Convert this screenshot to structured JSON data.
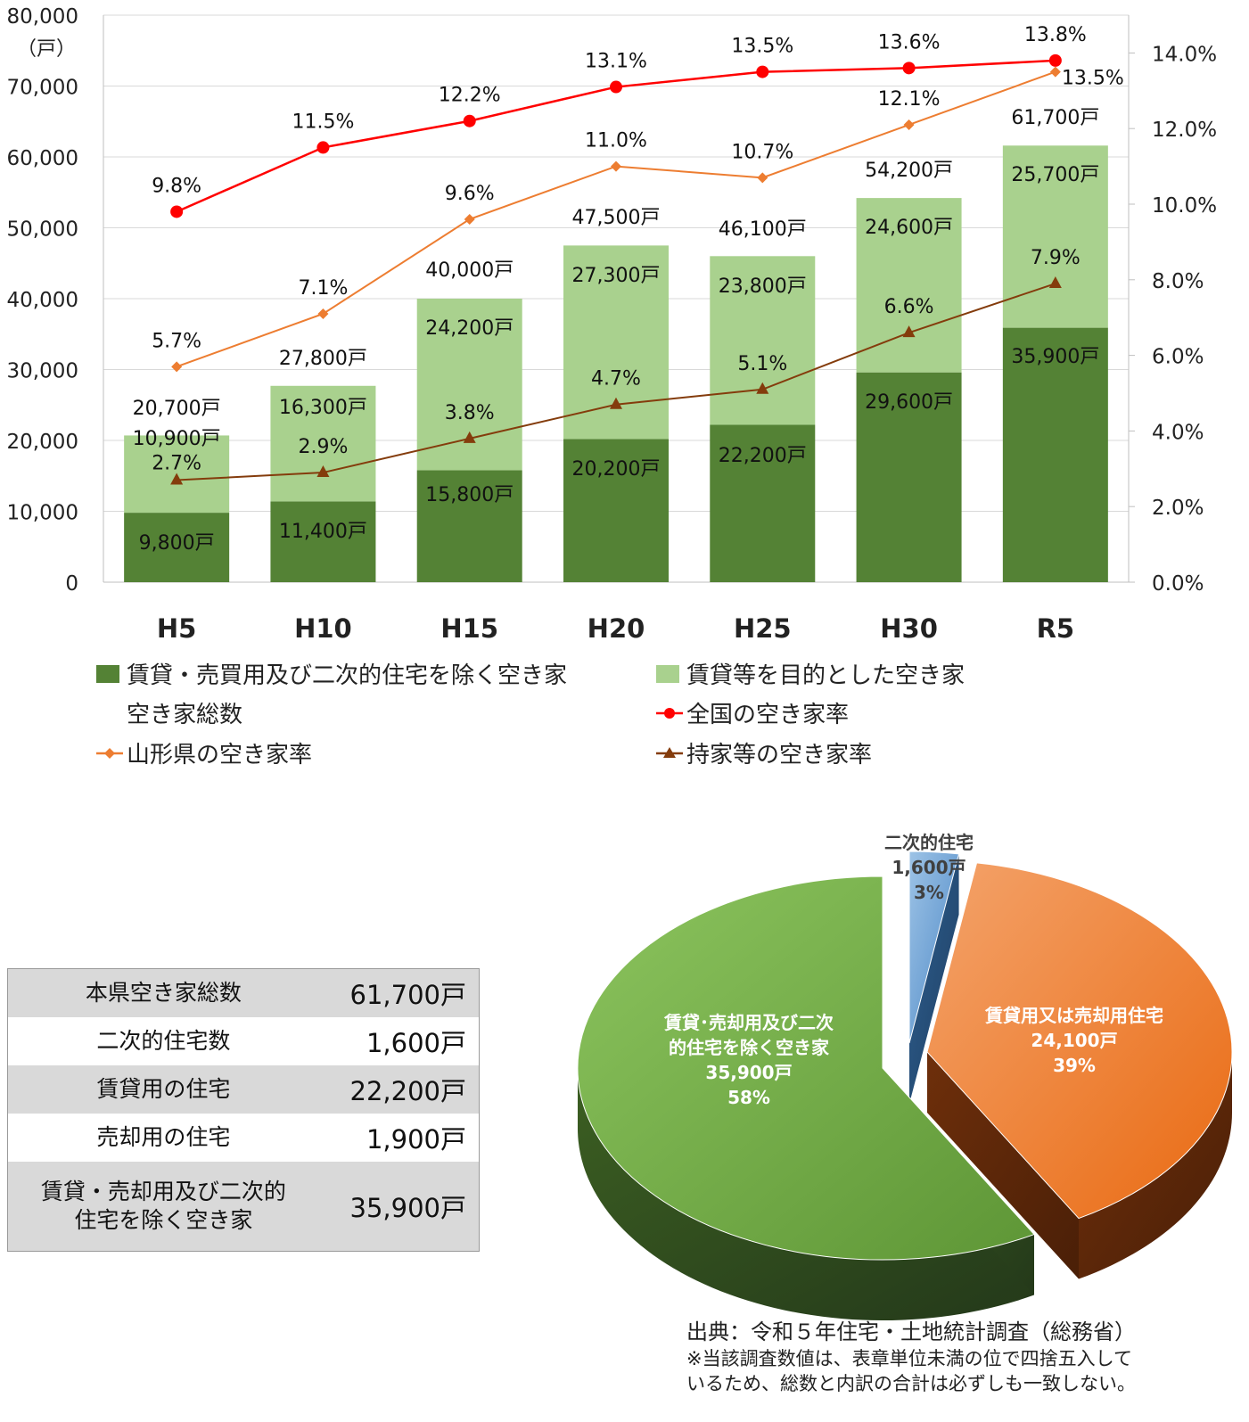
{
  "chart_data": [
    {
      "type": "bar",
      "stacked": true,
      "categories": [
        "H5",
        "H10",
        "H15",
        "H20",
        "H25",
        "H30",
        "R5"
      ],
      "y_left_unit": "（戸）",
      "ylim_left": [
        0,
        80000
      ],
      "yticks_left": [
        "0",
        "10,000",
        "20,000",
        "30,000",
        "40,000",
        "50,000",
        "60,000",
        "70,000",
        "80,000"
      ],
      "ylim_right": [
        0,
        15
      ],
      "yticks_right_values": [
        0,
        2,
        4,
        6,
        8,
        10,
        12,
        14
      ],
      "yticks_right": [
        "0.0%",
        "2.0%",
        "4.0%",
        "6.0%",
        "8.0%",
        "10.0%",
        "12.0%",
        "14.0%"
      ],
      "grid": "horizontal",
      "legend_position": "bottom",
      "bar_series": [
        {
          "name": "賃貸・売買用及び二次的住宅を除く空き家",
          "color": "#548235",
          "values": [
            9800,
            11400,
            15800,
            20200,
            22200,
            29600,
            35900
          ],
          "labels": [
            "9,800戸",
            "11,400戸",
            "15,800戸",
            "20,200戸",
            "22,200戸",
            "29,600戸",
            "35,900戸"
          ]
        },
        {
          "name": "賃貸等を目的とした空き家",
          "color": "#a9d18e",
          "values": [
            10900,
            16300,
            24200,
            27300,
            23800,
            24600,
            25700
          ],
          "labels": [
            "10,900戸",
            "16,300戸",
            "24,200戸",
            "27,300戸",
            "23,800戸",
            "24,600戸",
            "25,700戸"
          ]
        }
      ],
      "total_series": {
        "name": "空き家総数",
        "values": [
          20700,
          27800,
          40000,
          47500,
          46100,
          54200,
          61700
        ],
        "labels": [
          "20,700戸",
          "27,800戸",
          "40,000戸",
          "47,500戸",
          "46,100戸",
          "54,200戸",
          "61,700戸"
        ]
      },
      "line_series": [
        {
          "name": "全国の空き家率",
          "color": "#ff0000",
          "marker": "circle",
          "values": [
            9.8,
            11.5,
            12.2,
            13.1,
            13.5,
            13.6,
            13.8
          ],
          "labels": [
            "9.8%",
            "11.5%",
            "12.2%",
            "13.1%",
            "13.5%",
            "13.6%",
            "13.8%"
          ]
        },
        {
          "name": "山形県の空き家率",
          "color": "#ed7d31",
          "marker": "diamond",
          "values": [
            5.7,
            7.1,
            9.6,
            11.0,
            10.7,
            12.1,
            13.5
          ],
          "labels": [
            "5.7%",
            "7.1%",
            "9.6%",
            "11.0%",
            "10.7%",
            "12.1%",
            "13.5%"
          ]
        },
        {
          "name": "持家等の空き家率",
          "color": "#843c0c",
          "marker": "triangle",
          "values": [
            2.7,
            2.9,
            3.8,
            4.7,
            5.1,
            6.6,
            7.9
          ],
          "labels": [
            "2.7%",
            "2.9%",
            "3.8%",
            "4.7%",
            "5.1%",
            "6.6%",
            "7.9%"
          ]
        }
      ]
    },
    {
      "type": "pie",
      "style": "3d-exploded",
      "slices": [
        {
          "name": "二次的住宅",
          "value": 1600,
          "value_label": "1,600戸",
          "percent": "3%",
          "color": "#5b9bd5"
        },
        {
          "name": "賃貸用又は売却用住宅",
          "value": 24100,
          "value_label": "24,100戸",
          "percent": "39%",
          "color": "#ed7d31"
        },
        {
          "name_lines": [
            "賃貸･売却用及び二次",
            "的住宅を除く空き家"
          ],
          "value": 35900,
          "value_label": "35,900戸",
          "percent": "58%",
          "color": "#70ad47"
        }
      ]
    }
  ],
  "summary_table": [
    {
      "label_lines": [
        "本県空き家総数"
      ],
      "value": "61,700戸"
    },
    {
      "label_lines": [
        "二次的住宅数"
      ],
      "value": "1,600戸"
    },
    {
      "label_lines": [
        "賃貸用の住宅"
      ],
      "value": "22,200戸"
    },
    {
      "label_lines": [
        "売却用の住宅"
      ],
      "value": "1,900戸"
    },
    {
      "label_lines": [
        "賃貸・売却用及び二次的",
        "住宅を除く空き家"
      ],
      "value": "35,900戸"
    }
  ],
  "source": "出典：令和５年住宅・土地統計調査（総務省）",
  "note_lines": [
    "※当該調査数値は、表章単位未満の位で四捨五入して",
    "いるため、総数と内訳の合計は必ずしも一致しない。"
  ]
}
